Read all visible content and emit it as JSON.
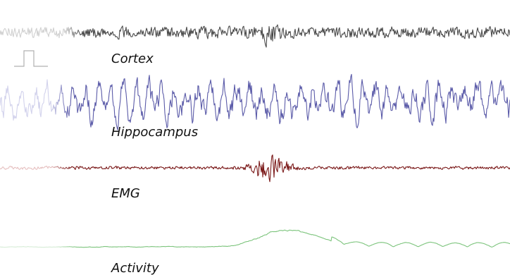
{
  "chart_data": {
    "type": "line",
    "title": "",
    "xlabel": "",
    "ylabel": "",
    "grid": false,
    "legend": "none",
    "series": [
      {
        "name": "Cortex",
        "color": "#4a4a4a",
        "fade_color": "#c8c8c8",
        "amplitude": 0.35,
        "burst": {
          "center": 0.53,
          "width": 0.02,
          "gain": 2.4
        }
      },
      {
        "name": "Hippocampus",
        "color": "#5a5aa8",
        "fade_color": "#c9c9e6",
        "amplitude": 0.8,
        "burst": null
      },
      {
        "name": "EMG",
        "color": "#7a1818",
        "fade_color": "#e2b8b8",
        "amplitude": 0.12,
        "burst": {
          "center": 0.53,
          "width": 0.035,
          "gain": 9.0
        }
      },
      {
        "name": "Activity",
        "color": "#7cc47c",
        "fade_color": "#cfe8cf",
        "amplitude": 0.25,
        "burst": {
          "center": 0.55,
          "width": 0.06,
          "gain": 3.2
        }
      }
    ],
    "stimulus_marker": {
      "type": "square-pulse",
      "color": "#aaaaaa"
    },
    "onset_time_fraction": 0.53
  }
}
